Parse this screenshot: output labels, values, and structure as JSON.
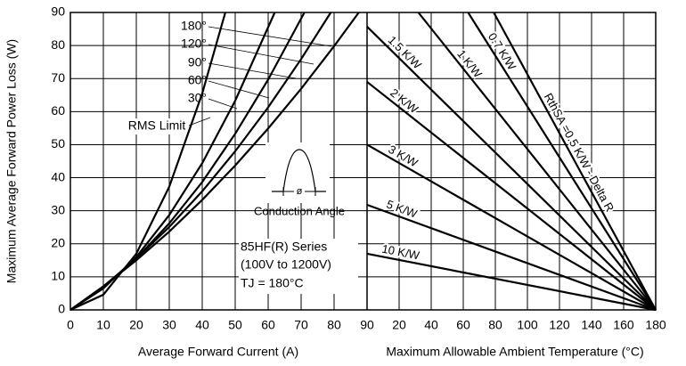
{
  "chart_data": [
    {
      "type": "line",
      "xlabel": "Average Forward Current (A)",
      "ylabel": "Maximum Average Forward Power Loss (W)",
      "xlim": [
        0,
        90
      ],
      "ylim": [
        0,
        90
      ],
      "xticks": [
        0,
        10,
        20,
        30,
        40,
        50,
        60,
        70,
        80,
        90
      ],
      "yticks": [
        0,
        10,
        20,
        30,
        40,
        50,
        60,
        70,
        80,
        90
      ],
      "grid": true,
      "color": "#000000",
      "series": [
        {
          "name": "30°",
          "x": [
            0,
            10,
            20,
            30,
            40,
            47
          ],
          "values": [
            0,
            4.6,
            17,
            37.3,
            65.5,
            90
          ]
        },
        {
          "name": "60°",
          "x": [
            0,
            10,
            20,
            30,
            40,
            50,
            62
          ],
          "values": [
            0,
            6.5,
            16,
            28.7,
            44.4,
            63.3,
            90
          ]
        },
        {
          "name": "90°",
          "x": [
            0,
            10,
            20,
            30,
            40,
            50,
            60,
            71
          ],
          "values": [
            0,
            6.8,
            15.5,
            26.2,
            38.7,
            53.3,
            69.7,
            90
          ]
        },
        {
          "name": "120°",
          "x": [
            0,
            10,
            20,
            30,
            40,
            50,
            60,
            70,
            79
          ],
          "values": [
            0,
            7.1,
            15.5,
            25.1,
            35.9,
            48,
            61.3,
            75.9,
            90
          ]
        },
        {
          "name": "180°",
          "x": [
            0,
            10,
            20,
            30,
            40,
            50,
            60,
            70,
            80,
            87.5
          ],
          "values": [
            0,
            7.1,
            15,
            23.7,
            33.3,
            43.7,
            54.9,
            66.9,
            79.8,
            90
          ]
        }
      ],
      "annotations": [
        "RMS Limit",
        "Conduction Angle",
        "ø",
        "85HF(R) Series",
        "(100V to 1200V)",
        "TJ = 180°C"
      ]
    },
    {
      "type": "line",
      "xlabel": "Maximum Allowable Ambient Temperature (°C)",
      "xlim": [
        0,
        180
      ],
      "ylim": [
        0,
        90
      ],
      "xticks": [
        20,
        40,
        60,
        80,
        100,
        120,
        140,
        160,
        180
      ],
      "grid": true,
      "color": "#000000",
      "series": [
        {
          "name": "RthSA =0.5 K/W - Delta R",
          "x": [
            79,
            180
          ],
          "values": [
            90,
            0
          ]
        },
        {
          "name": "0.7 K/W",
          "x": [
            63,
            180
          ],
          "values": [
            90,
            0
          ]
        },
        {
          "name": "1 K/W",
          "x": [
            32,
            180
          ],
          "values": [
            90,
            0
          ]
        },
        {
          "name": "1.5 K/W",
          "x": [
            0,
            180
          ],
          "values": [
            85.7,
            0
          ]
        },
        {
          "name": "2 K/W",
          "x": [
            0,
            180
          ],
          "values": [
            69,
            0
          ]
        },
        {
          "name": "3 K/W",
          "x": [
            0,
            180
          ],
          "values": [
            50,
            0
          ]
        },
        {
          "name": "5 K/W",
          "x": [
            0,
            180
          ],
          "values": [
            31.8,
            0
          ]
        },
        {
          "name": "10 K/W",
          "x": [
            0,
            180
          ],
          "values": [
            17,
            0
          ]
        }
      ]
    }
  ]
}
